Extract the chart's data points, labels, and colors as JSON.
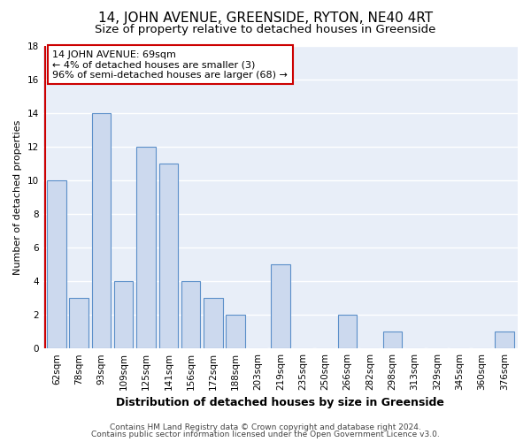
{
  "title": "14, JOHN AVENUE, GREENSIDE, RYTON, NE40 4RT",
  "subtitle": "Size of property relative to detached houses in Greenside",
  "xlabel": "Distribution of detached houses by size in Greenside",
  "ylabel": "Number of detached properties",
  "bar_labels": [
    "62sqm",
    "78sqm",
    "93sqm",
    "109sqm",
    "125sqm",
    "141sqm",
    "156sqm",
    "172sqm",
    "188sqm",
    "203sqm",
    "219sqm",
    "235sqm",
    "250sqm",
    "266sqm",
    "282sqm",
    "298sqm",
    "313sqm",
    "329sqm",
    "345sqm",
    "360sqm",
    "376sqm"
  ],
  "bar_values": [
    10,
    3,
    14,
    4,
    12,
    11,
    4,
    3,
    2,
    0,
    5,
    0,
    0,
    2,
    0,
    1,
    0,
    0,
    0,
    0,
    1
  ],
  "bar_facecolor": "#ccd9ee",
  "bar_edgecolor": "#5b8fc9",
  "annotation_title": "14 JOHN AVENUE: 69sqm",
  "annotation_line1": "← 4% of detached houses are smaller (3)",
  "annotation_line2": "96% of semi-detached houses are larger (68) →",
  "annotation_box_facecolor": "#ffffff",
  "annotation_box_edgecolor": "#cc0000",
  "red_line_color": "#cc0000",
  "ylim": [
    0,
    18
  ],
  "yticks": [
    0,
    2,
    4,
    6,
    8,
    10,
    12,
    14,
    16,
    18
  ],
  "footer1": "Contains HM Land Registry data © Crown copyright and database right 2024.",
  "footer2": "Contains public sector information licensed under the Open Government Licence v3.0.",
  "bg_color": "#ffffff",
  "plot_bg_color": "#e8eef8",
  "grid_color": "#ffffff",
  "title_fontsize": 11,
  "subtitle_fontsize": 9.5,
  "xlabel_fontsize": 9,
  "ylabel_fontsize": 8,
  "tick_fontsize": 7.5,
  "annotation_fontsize": 8,
  "footer_fontsize": 6.5
}
